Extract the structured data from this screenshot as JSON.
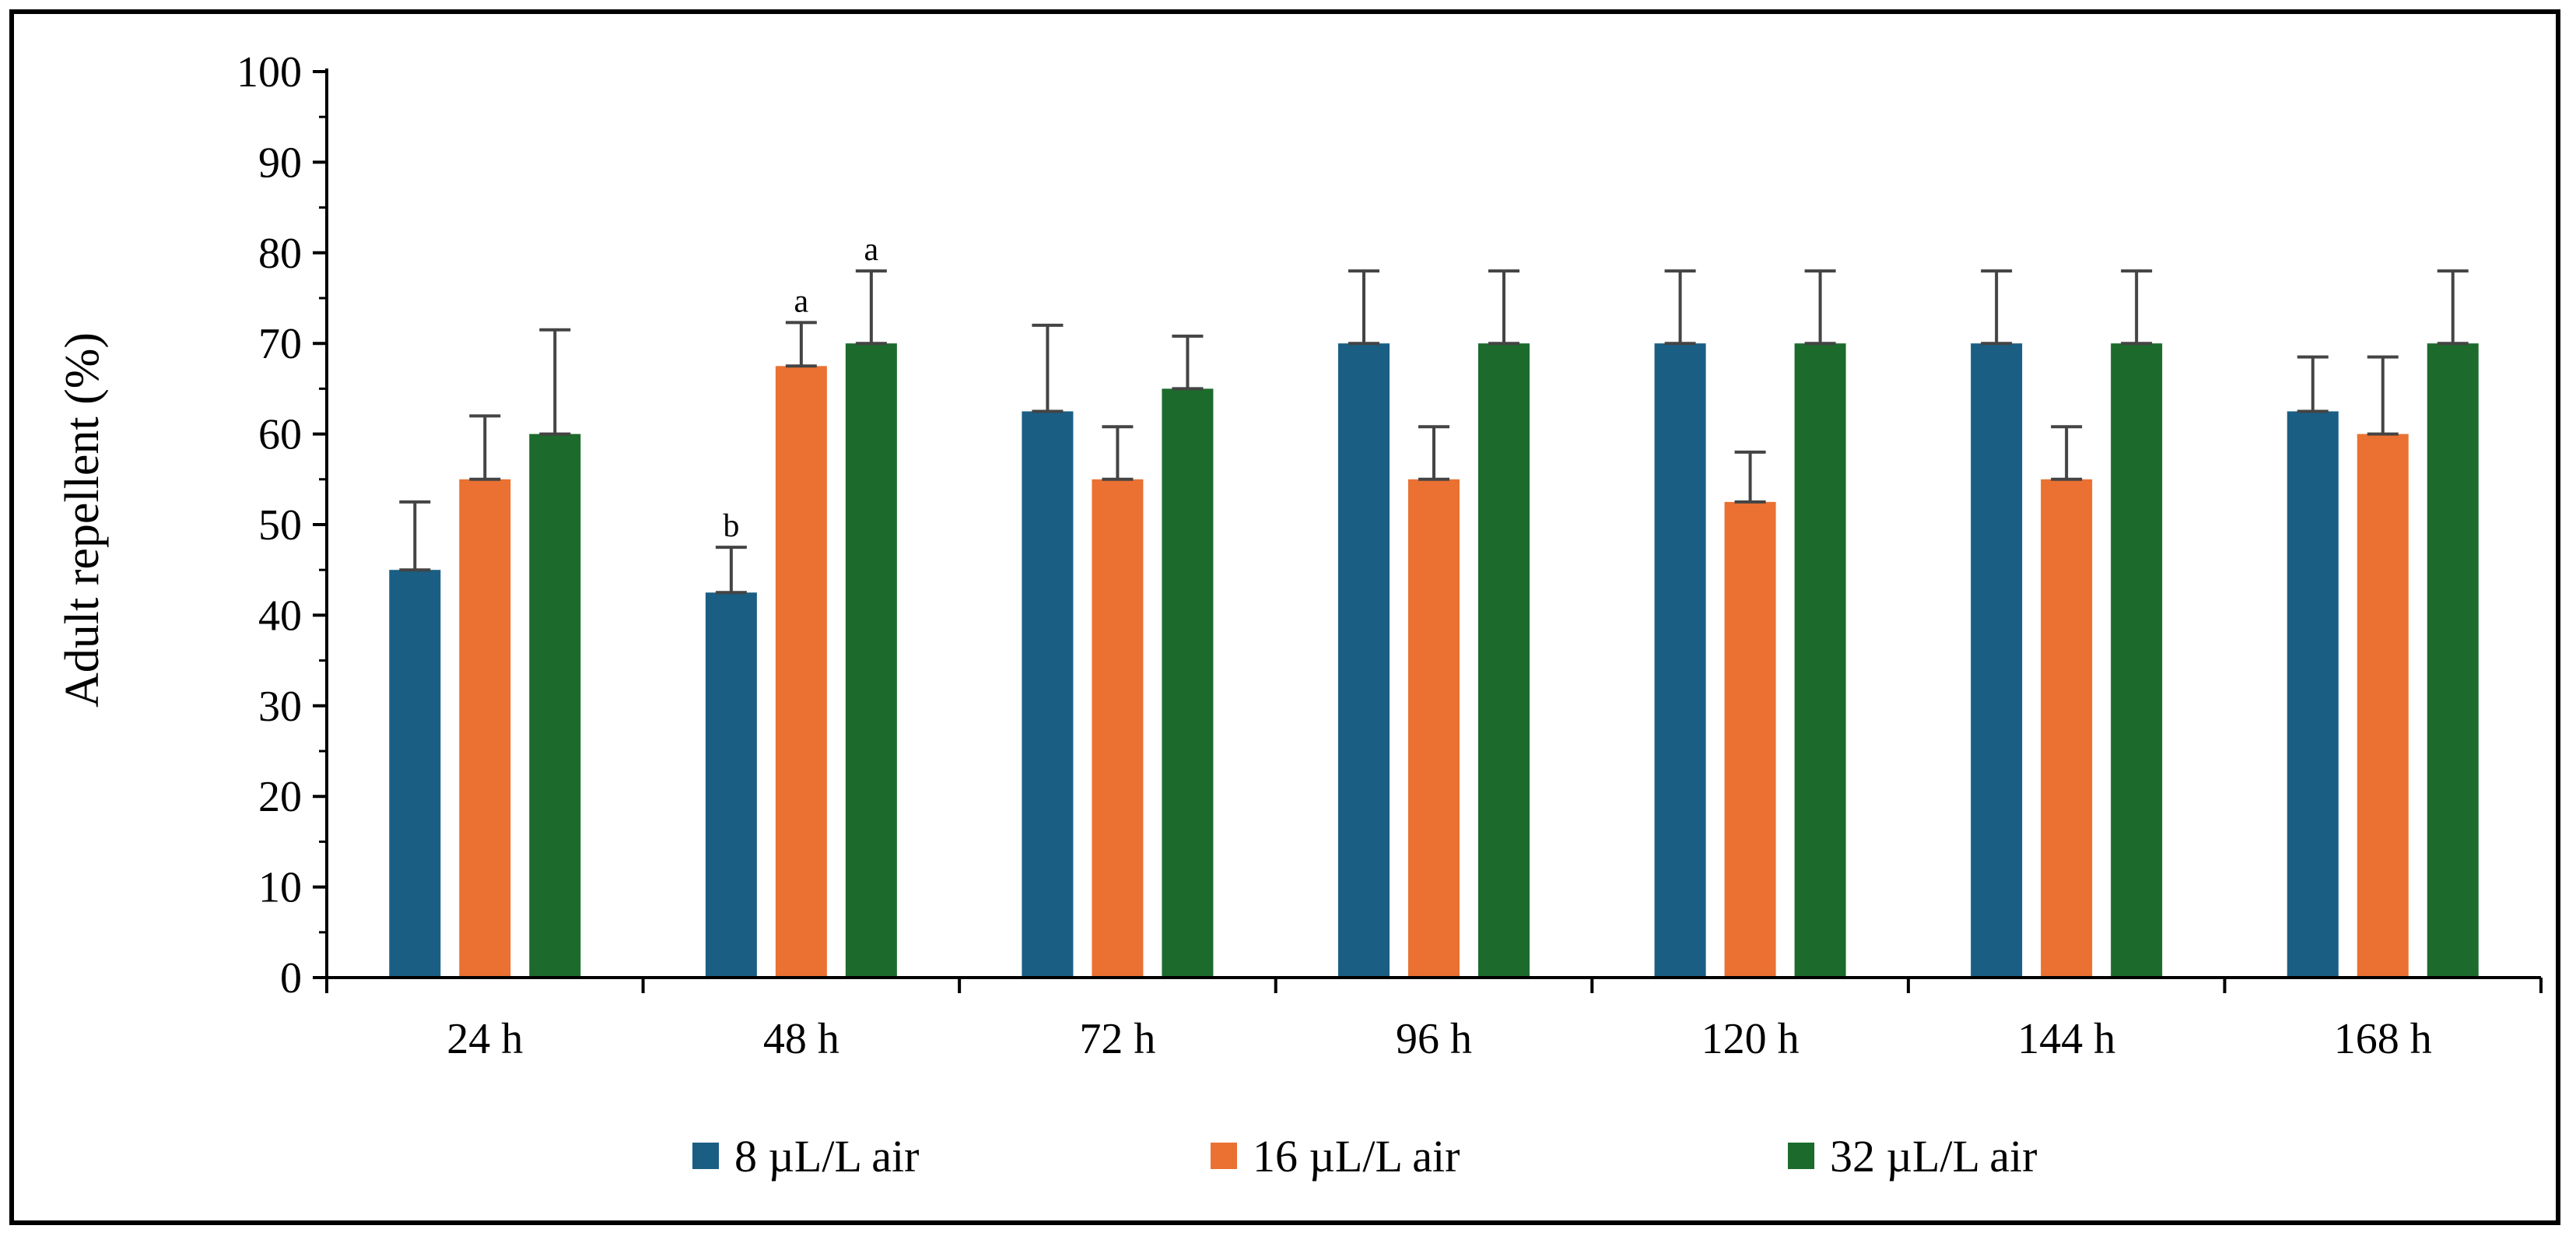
{
  "chart_data": {
    "type": "bar",
    "title": "",
    "xlabel": "",
    "ylabel": "Adult repellent (%)",
    "ylim": [
      0,
      100
    ],
    "yticks": [
      "0",
      "10",
      "20",
      "30",
      "40",
      "50",
      "60",
      "70",
      "80",
      "90",
      "100"
    ],
    "categories": [
      "24 h",
      "48 h",
      "72 h",
      "96 h",
      "120 h",
      "144 h",
      "168 h"
    ],
    "series": [
      {
        "name": "8 µL/L air",
        "color": "#1a5e84",
        "values": [
          45,
          42.5,
          62.5,
          70,
          70,
          70,
          62.5
        ],
        "errors": [
          7.5,
          5,
          9.5,
          8,
          8,
          8,
          6
        ],
        "annotations": [
          "",
          "b",
          "",
          "",
          "",
          "",
          ""
        ]
      },
      {
        "name": "16 µL/L air",
        "color": "#ea7132",
        "values": [
          55,
          67.5,
          55,
          55,
          52.5,
          55,
          60
        ],
        "errors": [
          7,
          4.8,
          5.8,
          5.8,
          5.5,
          5.8,
          8.5
        ],
        "annotations": [
          "",
          "a",
          "",
          "",
          "",
          "",
          ""
        ]
      },
      {
        "name": "32 µL/L air",
        "color": "#1c6b2c",
        "values": [
          60,
          70,
          65,
          70,
          70,
          70,
          70
        ],
        "errors": [
          11.5,
          8,
          5.8,
          8,
          8,
          8,
          8
        ],
        "annotations": [
          "",
          "a",
          "",
          "",
          "",
          "",
          ""
        ]
      }
    ]
  }
}
